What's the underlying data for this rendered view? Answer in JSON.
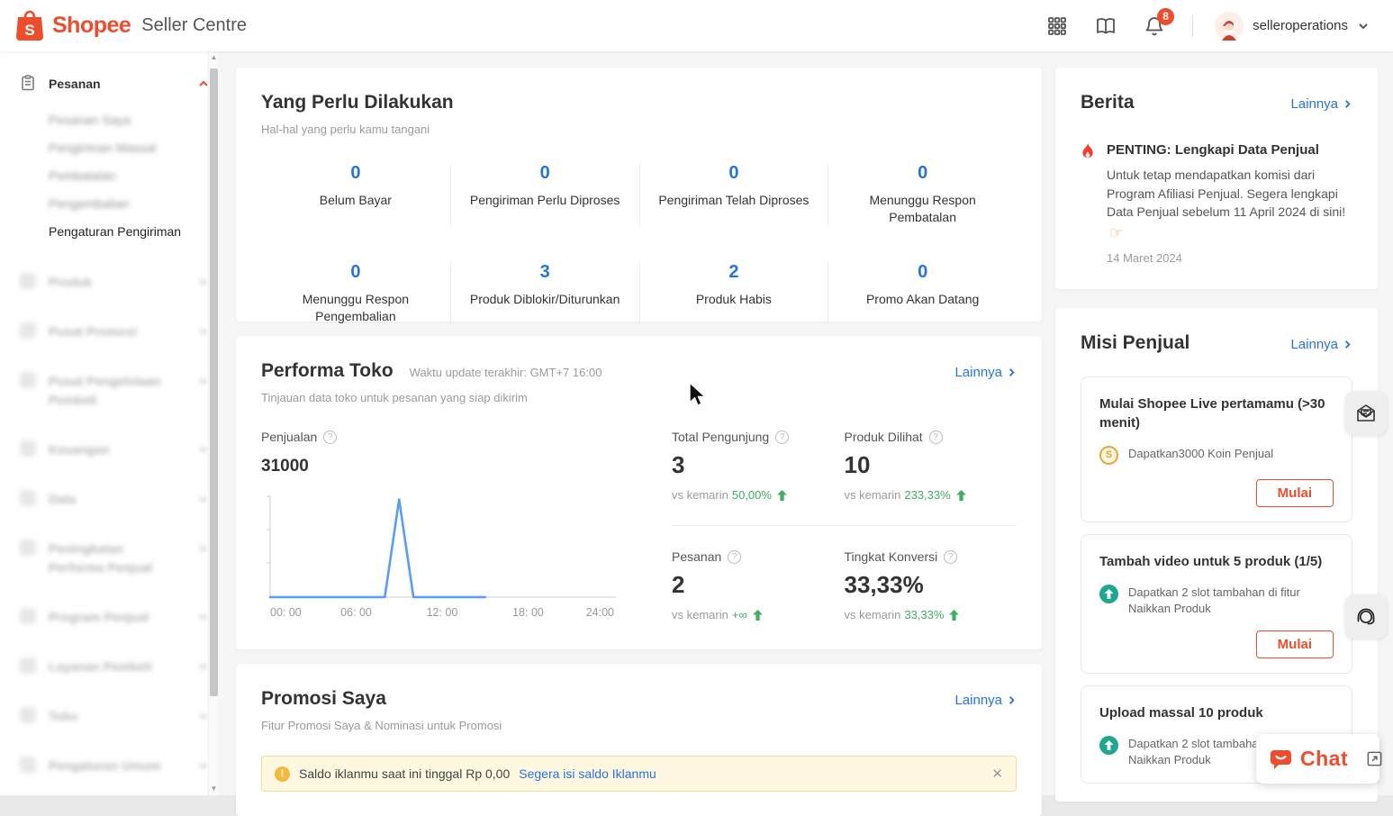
{
  "header": {
    "brand": "Shopee",
    "product": "Seller Centre",
    "username": "selleroperations",
    "notification_count": "8"
  },
  "sidebar": {
    "pesanan": {
      "label": "Pesanan",
      "items": [
        {
          "label": "Pesanan Saya"
        },
        {
          "label": "Pengiriman Massal"
        },
        {
          "label": "Pembatalan"
        },
        {
          "label": "Pengembalian"
        },
        {
          "label": "Pengaturan Pengiriman"
        }
      ]
    },
    "sections": [
      {
        "label": "Produk"
      },
      {
        "label": "Pusat Promosi"
      },
      {
        "label": "Pusat Pengelolaan Pembeli"
      },
      {
        "label": "Keuangan"
      },
      {
        "label": "Data"
      },
      {
        "label": "Peningkatan Performa Penjual"
      },
      {
        "label": "Program Penjual"
      },
      {
        "label": "Layanan Pembeli"
      },
      {
        "label": "Toko"
      },
      {
        "label": "Pengaturan Umum"
      }
    ]
  },
  "todo": {
    "title": "Yang Perlu Dilakukan",
    "subtitle": "Hal-hal yang perlu kamu tangani",
    "stats": [
      {
        "value": "0",
        "label": "Belum Bayar"
      },
      {
        "value": "0",
        "label": "Pengiriman Perlu Diproses"
      },
      {
        "value": "0",
        "label": "Pengiriman Telah Diproses"
      },
      {
        "value": "0",
        "label": "Menunggu Respon Pembatalan"
      },
      {
        "value": "0",
        "label": "Menunggu Respon Pengembalian"
      },
      {
        "value": "3",
        "label": "Produk Diblokir/Diturunkan"
      },
      {
        "value": "2",
        "label": "Produk Habis"
      },
      {
        "value": "0",
        "label": "Promo Akan Datang"
      }
    ]
  },
  "performa": {
    "title": "Performa Toko",
    "updated": "Waktu update terakhir: GMT+7 16:00",
    "subtitle": "Tinjauan data toko untuk pesanan yang siap dikirim",
    "more_label": "Lainnya",
    "sales_label": "Penjualan",
    "sales_value": "31000",
    "metrics": [
      {
        "label": "Total Pengunjung",
        "value": "3",
        "vs": "vs kemarin",
        "change": "50,00%"
      },
      {
        "label": "Produk Dilihat",
        "value": "10",
        "vs": "vs kemarin",
        "change": "233,33%"
      },
      {
        "label": "Pesanan",
        "value": "2",
        "vs": "vs kemarin",
        "change": "+∞"
      },
      {
        "label": "Tingkat Konversi",
        "value": "33,33%",
        "vs": "vs kemarin",
        "change": "33,33%"
      }
    ]
  },
  "chart_data": {
    "type": "line",
    "title": "Penjualan",
    "xlabel": "",
    "ylabel": "",
    "x_ticks": [
      "00: 00",
      "06: 00",
      "12: 00",
      "18: 00",
      "24:00"
    ],
    "tick_hours": [
      0,
      6,
      12,
      18,
      24
    ],
    "x_hours": [
      0,
      1,
      2,
      3,
      4,
      5,
      6,
      7,
      8,
      9,
      10,
      11,
      12,
      13,
      14,
      15
    ],
    "values": [
      0,
      0,
      0,
      0,
      0,
      0,
      0,
      0,
      0,
      31000,
      0,
      0,
      0,
      0,
      0,
      0
    ],
    "x_range": [
      0,
      24
    ],
    "ylim": [
      0,
      32000
    ],
    "line_color": "#5b9cf8",
    "grid": false,
    "legend": false
  },
  "promosi": {
    "title": "Promosi Saya",
    "subtitle": "Fitur Promosi Saya & Nominasi untuk Promosi",
    "more_label": "Lainnya",
    "banner": {
      "text": "Saldo iklanmu saat ini tinggal Rp 0,00",
      "link": "Segera isi saldo Iklanmu",
      "close": "✕"
    }
  },
  "berita": {
    "title": "Berita",
    "more_label": "Lainnya",
    "news": {
      "title": "PENTING: Lengkapi Data Penjual",
      "body": "Untuk tetap mendapatkan komisi dari Program Afiliasi Penjual. Segera lengkapi Data Penjual sebelum 11 April 2024 di sini!",
      "date": "14 Maret 2024"
    }
  },
  "misi": {
    "title": "Misi Penjual",
    "more_label": "Lainnya",
    "missions": [
      {
        "title": "Mulai Shopee Live pertamamu (>30 menit)",
        "reward": "Dapatkan3000 Koin Penjual",
        "cta": "Mulai"
      },
      {
        "title": "Tambah video untuk 5 produk (1/5)",
        "reward": "Dapatkan 2 slot tambahan di fitur Naikkan Produk",
        "cta": "Mulai"
      },
      {
        "title": "Upload massal 10 produk",
        "reward": "Dapatkan 2 slot tambahan di fitur Naikkan Produk"
      }
    ]
  },
  "chat": {
    "label": "Chat"
  },
  "colors": {
    "brand_orange": "#EE4D2D",
    "link_blue": "#2673DD",
    "stat_blue": "#2673DD",
    "positive_green": "#3fae60",
    "chart_line": "#5b9cf8",
    "banner_bg": "#FFF8E1"
  }
}
